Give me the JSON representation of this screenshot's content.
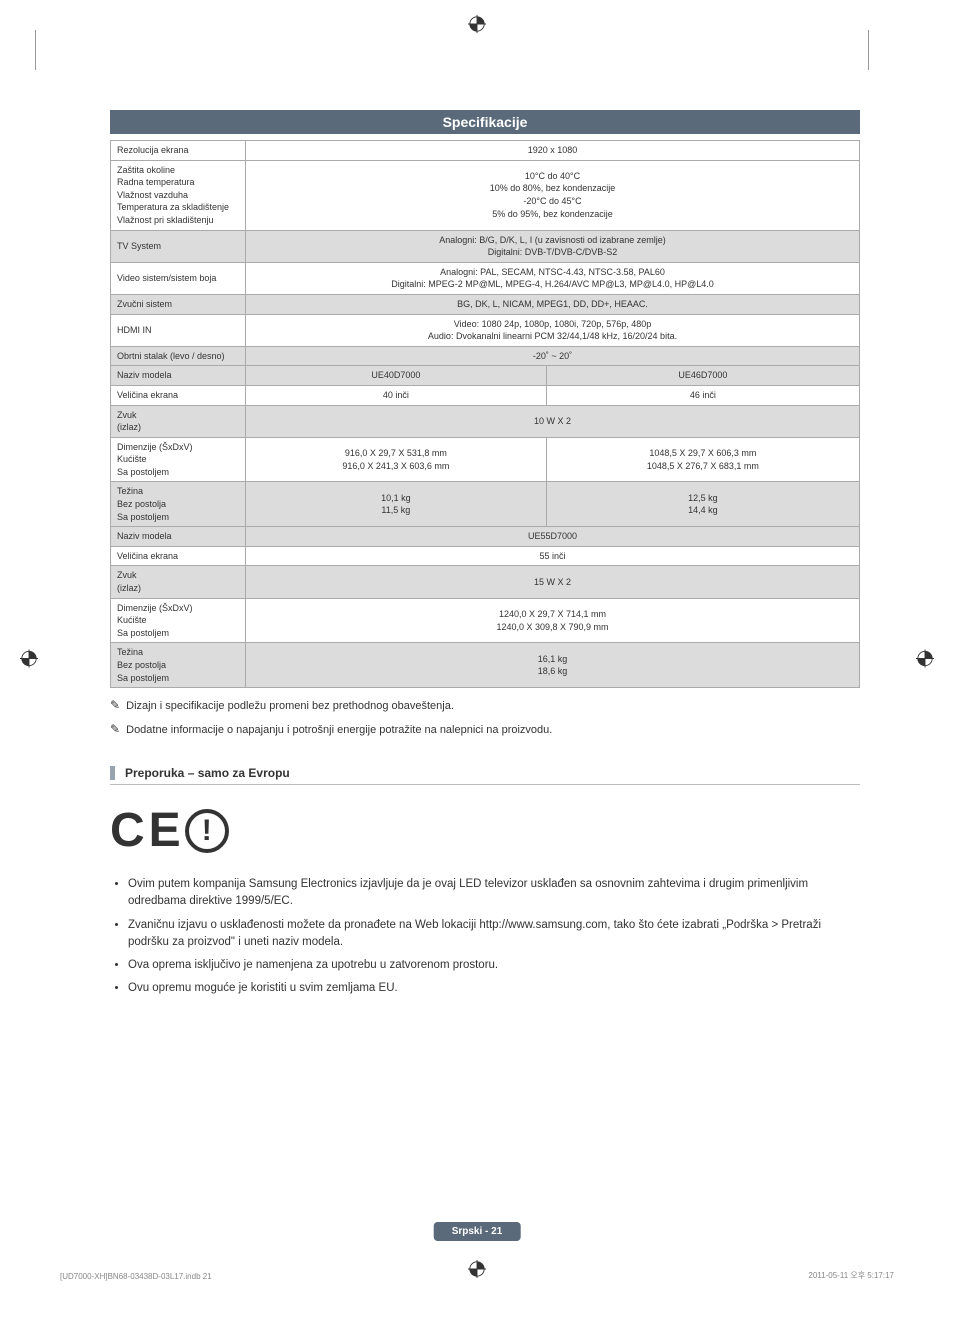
{
  "section_title": "Specifikacije",
  "spec": {
    "rows": [
      {
        "label": "Rezolucija ekrana",
        "value": "1920 x 1080",
        "span": 2,
        "center": true
      },
      {
        "label_multi": [
          "Zaštita okoline",
          "Radna temperatura",
          "Vlažnost vazduha",
          "Temperatura za skladištenje",
          "Vlažnost pri skladištenju"
        ],
        "value_multi": [
          "",
          "10°C do 40°C",
          "10% do 80%, bez kondenzacije",
          "-20°C do 45°C",
          "5% do 95%, bez kondenzacije"
        ],
        "span": 2,
        "center": true
      },
      {
        "label": "TV System",
        "value": "Analogni: B/G, D/K, L, I (u zavisnosti od izabrane zemlje)\nDigitalni: DVB-T/DVB-C/DVB-S2",
        "span": 2,
        "center": true,
        "shaded": true
      },
      {
        "label": "Video sistem/sistem boja",
        "value": "Analogni: PAL, SECAM, NTSC-4.43, NTSC-3.58, PAL60\nDigitalni: MPEG-2 MP@ML, MPEG-4, H.264/AVC MP@L3, MP@L4.0, HP@L4.0",
        "span": 2,
        "center": true
      },
      {
        "label": "Zvučni sistem",
        "value": "BG, DK, L, NICAM, MPEG1, DD, DD+, HEAAC.",
        "span": 2,
        "center": true,
        "shaded": true
      },
      {
        "label": "HDMI IN",
        "value": "Video: 1080 24p, 1080p, 1080i, 720p, 576p, 480p\nAudio: Dvokanalni linearni PCM 32/44,1/48 kHz, 16/20/24 bita.",
        "span": 2,
        "center": true
      },
      {
        "label": "Obrtni stalak (levo / desno)",
        "value": "-20˚ ~ 20˚",
        "span": 2,
        "center": true,
        "shaded": true
      },
      {
        "label": "Naziv modela",
        "col1": "UE40D7000",
        "col2": "UE46D7000",
        "center": true,
        "shaded": true
      },
      {
        "label": "Veličina ekrana",
        "col1": "40 inči",
        "col2": "46 inči",
        "center": true
      },
      {
        "label": "Zvuk\n(izlaz)",
        "value": "10 W X 2",
        "span": 2,
        "center": true,
        "shaded": true
      },
      {
        "label": "Dimenzije (ŠxDxV)\nKućište\nSa postoljem",
        "col1": "916,0 X 29,7 X 531,8 mm\n916,0 X 241,3 X 603,6 mm",
        "col2": "1048,5 X 29,7 X 606,3 mm\n1048,5 X 276,7 X 683,1 mm",
        "center": true
      },
      {
        "label": "Težina\nBez postolja\nSa postoljem",
        "col1": "10,1 kg\n11,5 kg",
        "col2": "12,5 kg\n14,4 kg",
        "center": true,
        "shaded": true
      },
      {
        "label": "Naziv modela",
        "value": "UE55D7000",
        "span": 2,
        "center": true,
        "shaded": true
      },
      {
        "label": "Veličina ekrana",
        "value": "55 inči",
        "span": 2,
        "center": true
      },
      {
        "label": "Zvuk\n(izlaz)",
        "value": "15 W X 2",
        "span": 2,
        "center": true,
        "shaded": true
      },
      {
        "label": "Dimenzije (ŠxDxV)\nKućište\nSa postoljem",
        "value": "1240,0 X 29,7 X 714,1 mm\n1240,0 X 309,8 X 790,9 mm",
        "span": 2,
        "center": true
      },
      {
        "label": "Težina\nBez postolja\nSa postoljem",
        "value": "16,1 kg\n18,6 kg",
        "span": 2,
        "center": true,
        "shaded": true
      }
    ]
  },
  "note1": "Dizajn i specifikacije podležu promeni bez prethodnog obaveštenja.",
  "note2": "Dodatne informacije o napajanju i potrošnji energije potražite na nalepnici na proizvodu.",
  "subsection_title": "Preporuka – samo za Evropu",
  "bullets": [
    "Ovim putem kompanija Samsung Electronics izjavljuje da je ovaj LED televizor usklađen sa osnovnim zahtevima i drugim primenljivim odredbama direktive 1999/5/EC.",
    "Zvaničnu izjavu o usklađenosti možete da pronađete na Web lokaciji http://www.samsung.com, tako što ćete izabrati „Podrška > Pretraži podršku za proizvod\" i uneti naziv modela.",
    "Ova oprema isključivo je namenjena za upotrebu u zatvorenom prostoru.",
    "Ovu opremu moguće je koristiti u svim zemljama EU."
  ],
  "footer_lang": "Srpski - 21",
  "footer_left": "[UD7000-XH]BN68-03438D-03L17.indb   21",
  "footer_right": "2011-05-11   오후 5:17:17",
  "colors": {
    "header_bg": "#5a6a7a",
    "shade_bg": "#dcdcdc",
    "border": "#aaaaaa"
  }
}
